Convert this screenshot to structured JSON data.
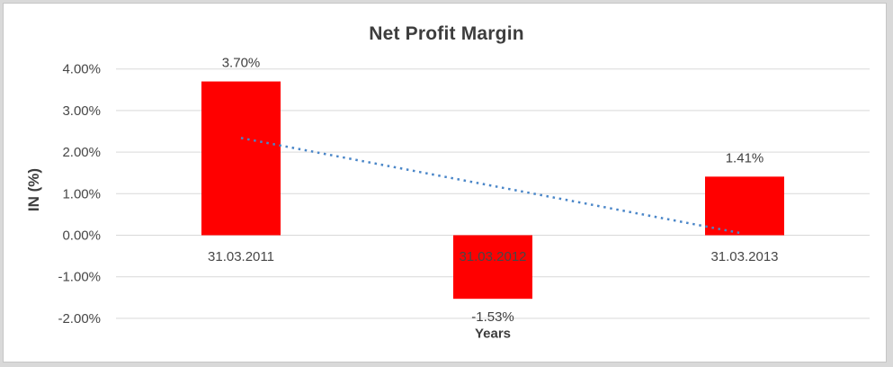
{
  "chart_data": {
    "type": "bar",
    "title": "Net Profit Margin",
    "xlabel": "Years",
    "ylabel": "IN (%)",
    "categories": [
      "31.03.2011",
      "31.03.2012",
      "31.03.2013"
    ],
    "values": [
      3.7,
      -1.53,
      1.41
    ],
    "data_labels": [
      "3.70%",
      "-1.53%",
      "1.41%"
    ],
    "bar_color": "#ff0000",
    "ylim": [
      -2,
      4
    ],
    "yticks": [
      4,
      3,
      2,
      1,
      0,
      -1,
      -2
    ],
    "ytick_labels": [
      "4.00%",
      "3.00%",
      "2.00%",
      "1.00%",
      "0.00%",
      "-1.00%",
      "-2.00%"
    ],
    "grid": true,
    "gridline_color": "#d9d9d9",
    "legend": "none",
    "trendline": {
      "type": "linear",
      "style": "dotted",
      "color": "#4a86c8",
      "start_value": 2.34,
      "end_value": 0.05
    },
    "text_color": "#404040"
  }
}
